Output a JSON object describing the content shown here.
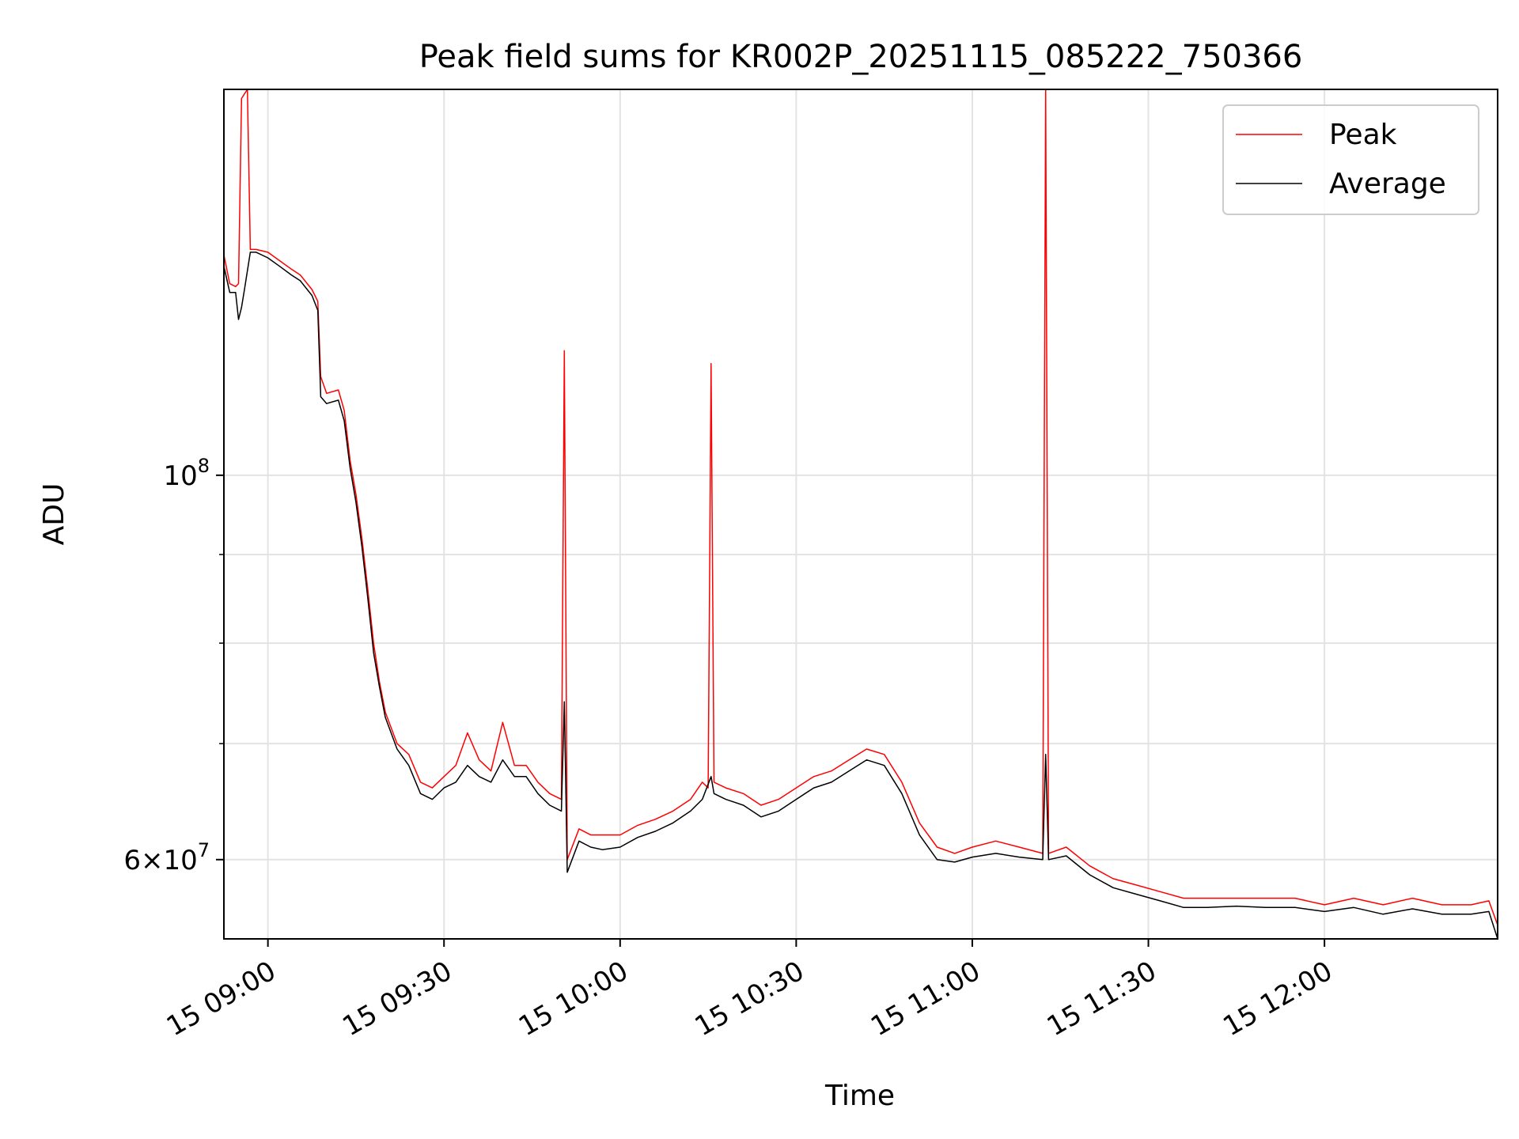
{
  "chart_data": {
    "type": "line",
    "title": "Peak field sums for KR002P_20251115_085222_750366",
    "xlabel": "Time",
    "ylabel": "ADU",
    "yscale": "log",
    "xlim": [
      "15 08:52:30",
      "15 12:29:30"
    ],
    "ylim": [
      54000000,
      167000000
    ],
    "x_ticks": [
      "15 09:00",
      "15 09:30",
      "15 10:00",
      "15 10:30",
      "15 11:00",
      "15 11:30",
      "15 12:00"
    ],
    "y_major_ticks": [
      {
        "value": 100000000,
        "base": "10",
        "exp": "8",
        "mant": ""
      },
      {
        "value": 60000000,
        "base": "10",
        "exp": "7",
        "mant": "6"
      }
    ],
    "y_minor_ticks": [
      70000000,
      80000000,
      90000000
    ],
    "grid": true,
    "legend_position": "top-right",
    "series": [
      {
        "name": "Peak",
        "color": "#ff0000",
        "points": [
          [
            "15 08:52:30",
            134000000
          ],
          [
            "15 08:53:30",
            129000000
          ],
          [
            "15 08:54:30",
            128500000
          ],
          [
            "15 08:55:00",
            129000000
          ],
          [
            "15 08:55:30",
            165000000
          ],
          [
            "15 08:56:00",
            166000000
          ],
          [
            "15 08:56:30",
            167000000
          ],
          [
            "15 08:57:00",
            135000000
          ],
          [
            "15 08:58:00",
            135000000
          ],
          [
            "15 09:00:00",
            134500000
          ],
          [
            "15 09:02:00",
            133000000
          ],
          [
            "15 09:04:00",
            131500000
          ],
          [
            "15 09:05:30",
            130500000
          ],
          [
            "15 09:07:30",
            128000000
          ],
          [
            "15 09:08:30",
            126000000
          ],
          [
            "15 09:09:00",
            114000000
          ],
          [
            "15 09:10:00",
            111500000
          ],
          [
            "15 09:12:00",
            112000000
          ],
          [
            "15 09:13:00",
            109000000
          ],
          [
            "15 09:14:00",
            102000000
          ],
          [
            "15 09:15:00",
            97500000
          ],
          [
            "15 09:16:00",
            92000000
          ],
          [
            "15 09:17:00",
            86000000
          ],
          [
            "15 09:18:00",
            80000000
          ],
          [
            "15 09:19:00",
            76000000
          ],
          [
            "15 09:20:00",
            73000000
          ],
          [
            "15 09:22:00",
            70000000
          ],
          [
            "15 09:24:00",
            69000000
          ],
          [
            "15 09:26:00",
            66500000
          ],
          [
            "15 09:28:00",
            66000000
          ],
          [
            "15 09:30:00",
            67000000
          ],
          [
            "15 09:32:00",
            68000000
          ],
          [
            "15 09:34:00",
            71000000
          ],
          [
            "15 09:36:00",
            68500000
          ],
          [
            "15 09:38:00",
            67500000
          ],
          [
            "15 09:40:00",
            72000000
          ],
          [
            "15 09:42:00",
            68000000
          ],
          [
            "15 09:44:00",
            68000000
          ],
          [
            "15 09:46:00",
            66500000
          ],
          [
            "15 09:48:00",
            65500000
          ],
          [
            "15 09:50:00",
            65000000
          ],
          [
            "15 09:50:30",
            118000000
          ],
          [
            "15 09:51:00",
            60000000
          ],
          [
            "15 09:53:00",
            62500000
          ],
          [
            "15 09:55:00",
            62000000
          ],
          [
            "15 09:57:00",
            62000000
          ],
          [
            "15 10:00:00",
            62000000
          ],
          [
            "15 10:03:00",
            62800000
          ],
          [
            "15 10:06:00",
            63300000
          ],
          [
            "15 10:09:00",
            64000000
          ],
          [
            "15 10:12:00",
            65000000
          ],
          [
            "15 10:14:00",
            66500000
          ],
          [
            "15 10:15:00",
            66000000
          ],
          [
            "15 10:15:30",
            116000000
          ],
          [
            "15 10:16:00",
            66500000
          ],
          [
            "15 10:18:00",
            66000000
          ],
          [
            "15 10:21:00",
            65500000
          ],
          [
            "15 10:24:00",
            64500000
          ],
          [
            "15 10:27:00",
            65000000
          ],
          [
            "15 10:30:00",
            66000000
          ],
          [
            "15 10:33:00",
            67000000
          ],
          [
            "15 10:36:00",
            67500000
          ],
          [
            "15 10:39:00",
            68500000
          ],
          [
            "15 10:42:00",
            69500000
          ],
          [
            "15 10:45:00",
            69000000
          ],
          [
            "15 10:48:00",
            66500000
          ],
          [
            "15 10:51:00",
            63000000
          ],
          [
            "15 10:54:00",
            61000000
          ],
          [
            "15 10:57:00",
            60500000
          ],
          [
            "15 11:00:00",
            61000000
          ],
          [
            "15 11:04:00",
            61500000
          ],
          [
            "15 11:08:00",
            61000000
          ],
          [
            "15 11:12:00",
            60500000
          ],
          [
            "15 11:12:30",
            167000000
          ],
          [
            "15 11:13:00",
            60500000
          ],
          [
            "15 11:16:00",
            61000000
          ],
          [
            "15 11:20:00",
            59500000
          ],
          [
            "15 11:24:00",
            58500000
          ],
          [
            "15 11:28:00",
            58000000
          ],
          [
            "15 11:32:00",
            57500000
          ],
          [
            "15 11:36:00",
            57000000
          ],
          [
            "15 11:40:00",
            57000000
          ],
          [
            "15 11:45:00",
            57000000
          ],
          [
            "15 11:50:00",
            57000000
          ],
          [
            "15 11:55:00",
            57000000
          ],
          [
            "15 12:00:00",
            56500000
          ],
          [
            "15 12:05:00",
            57000000
          ],
          [
            "15 12:10:00",
            56500000
          ],
          [
            "15 12:15:00",
            57000000
          ],
          [
            "15 12:20:00",
            56500000
          ],
          [
            "15 12:25:00",
            56500000
          ],
          [
            "15 12:28:00",
            56800000
          ],
          [
            "15 12:29:30",
            55000000
          ]
        ]
      },
      {
        "name": "Average",
        "color": "#000000",
        "points": [
          [
            "15 08:52:30",
            132000000
          ],
          [
            "15 08:53:30",
            127500000
          ],
          [
            "15 08:54:30",
            127500000
          ],
          [
            "15 08:55:00",
            123000000
          ],
          [
            "15 08:55:30",
            125000000
          ],
          [
            "15 08:56:00",
            128000000
          ],
          [
            "15 08:57:00",
            134500000
          ],
          [
            "15 08:58:00",
            134500000
          ],
          [
            "15 09:00:00",
            133500000
          ],
          [
            "15 09:02:00",
            132000000
          ],
          [
            "15 09:04:00",
            130500000
          ],
          [
            "15 09:05:30",
            129500000
          ],
          [
            "15 09:07:30",
            127000000
          ],
          [
            "15 09:08:30",
            124500000
          ],
          [
            "15 09:09:00",
            111000000
          ],
          [
            "15 09:10:00",
            110000000
          ],
          [
            "15 09:12:00",
            110500000
          ],
          [
            "15 09:13:00",
            107500000
          ],
          [
            "15 09:14:00",
            101000000
          ],
          [
            "15 09:15:00",
            96500000
          ],
          [
            "15 09:16:00",
            91000000
          ],
          [
            "15 09:17:00",
            85000000
          ],
          [
            "15 09:18:00",
            79000000
          ],
          [
            "15 09:19:00",
            75500000
          ],
          [
            "15 09:20:00",
            72500000
          ],
          [
            "15 09:22:00",
            69500000
          ],
          [
            "15 09:24:00",
            68000000
          ],
          [
            "15 09:26:00",
            65500000
          ],
          [
            "15 09:28:00",
            65000000
          ],
          [
            "15 09:30:00",
            66000000
          ],
          [
            "15 09:32:00",
            66500000
          ],
          [
            "15 09:34:00",
            68000000
          ],
          [
            "15 09:36:00",
            67000000
          ],
          [
            "15 09:38:00",
            66500000
          ],
          [
            "15 09:40:00",
            68500000
          ],
          [
            "15 09:42:00",
            67000000
          ],
          [
            "15 09:44:00",
            67000000
          ],
          [
            "15 09:46:00",
            65500000
          ],
          [
            "15 09:48:00",
            64500000
          ],
          [
            "15 09:50:00",
            64000000
          ],
          [
            "15 09:50:30",
            74000000
          ],
          [
            "15 09:51:00",
            59000000
          ],
          [
            "15 09:53:00",
            61500000
          ],
          [
            "15 09:55:00",
            61000000
          ],
          [
            "15 09:57:00",
            60800000
          ],
          [
            "15 10:00:00",
            61000000
          ],
          [
            "15 10:03:00",
            61800000
          ],
          [
            "15 10:06:00",
            62300000
          ],
          [
            "15 10:09:00",
            63000000
          ],
          [
            "15 10:12:00",
            64000000
          ],
          [
            "15 10:14:00",
            65000000
          ],
          [
            "15 10:15:30",
            67000000
          ],
          [
            "15 10:16:00",
            65500000
          ],
          [
            "15 10:18:00",
            65000000
          ],
          [
            "15 10:21:00",
            64500000
          ],
          [
            "15 10:24:00",
            63500000
          ],
          [
            "15 10:27:00",
            64000000
          ],
          [
            "15 10:30:00",
            65000000
          ],
          [
            "15 10:33:00",
            66000000
          ],
          [
            "15 10:36:00",
            66500000
          ],
          [
            "15 10:39:00",
            67500000
          ],
          [
            "15 10:42:00",
            68500000
          ],
          [
            "15 10:45:00",
            68000000
          ],
          [
            "15 10:48:00",
            65500000
          ],
          [
            "15 10:51:00",
            62000000
          ],
          [
            "15 10:54:00",
            60000000
          ],
          [
            "15 10:57:00",
            59800000
          ],
          [
            "15 11:00:00",
            60200000
          ],
          [
            "15 11:04:00",
            60500000
          ],
          [
            "15 11:08:00",
            60200000
          ],
          [
            "15 11:12:00",
            60000000
          ],
          [
            "15 11:12:30",
            69000000
          ],
          [
            "15 11:13:00",
            60000000
          ],
          [
            "15 11:16:00",
            60300000
          ],
          [
            "15 11:20:00",
            58800000
          ],
          [
            "15 11:24:00",
            57800000
          ],
          [
            "15 11:28:00",
            57300000
          ],
          [
            "15 11:32:00",
            56800000
          ],
          [
            "15 11:36:00",
            56300000
          ],
          [
            "15 11:40:00",
            56300000
          ],
          [
            "15 11:45:00",
            56400000
          ],
          [
            "15 11:50:00",
            56300000
          ],
          [
            "15 11:55:00",
            56300000
          ],
          [
            "15 12:00:00",
            56000000
          ],
          [
            "15 12:05:00",
            56300000
          ],
          [
            "15 12:10:00",
            55800000
          ],
          [
            "15 12:15:00",
            56200000
          ],
          [
            "15 12:20:00",
            55800000
          ],
          [
            "15 12:25:00",
            55800000
          ],
          [
            "15 12:28:00",
            56000000
          ],
          [
            "15 12:29:30",
            54000000
          ]
        ]
      }
    ]
  }
}
